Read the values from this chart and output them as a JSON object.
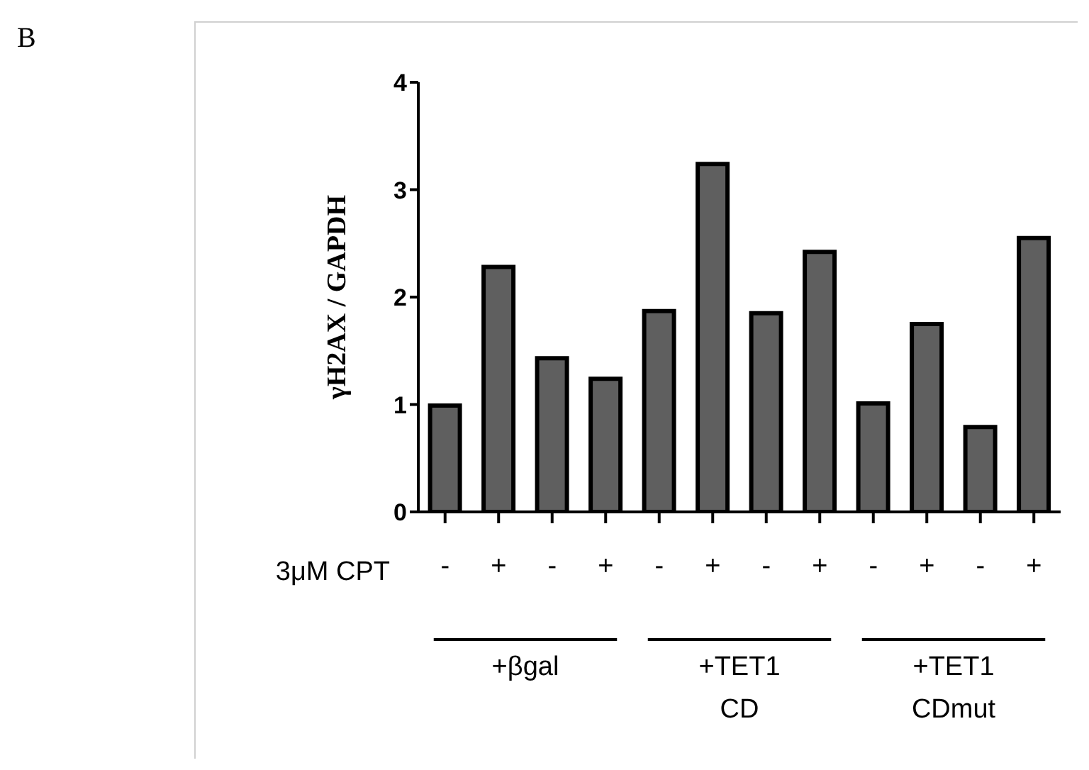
{
  "chart_data": {
    "type": "bar",
    "title": "B",
    "ylabel": "γH2AX / GAPDH",
    "categories": [
      "-",
      "+",
      "-",
      "+",
      "-",
      "+",
      "-",
      "+",
      "-",
      "+",
      "-",
      "+"
    ],
    "values": [
      0.99,
      2.28,
      1.43,
      1.24,
      1.87,
      3.24,
      1.85,
      2.42,
      1.01,
      1.75,
      0.79,
      2.55
    ],
    "color": "#5f5f5f",
    "ylim": [
      0,
      4
    ],
    "yticks": [
      0,
      1,
      2,
      3,
      4
    ],
    "grid": false,
    "annotations": [
      "3μM CPT",
      "+βgal",
      "+TET1\nCD",
      "+TET1\nCDmut"
    ]
  }
}
